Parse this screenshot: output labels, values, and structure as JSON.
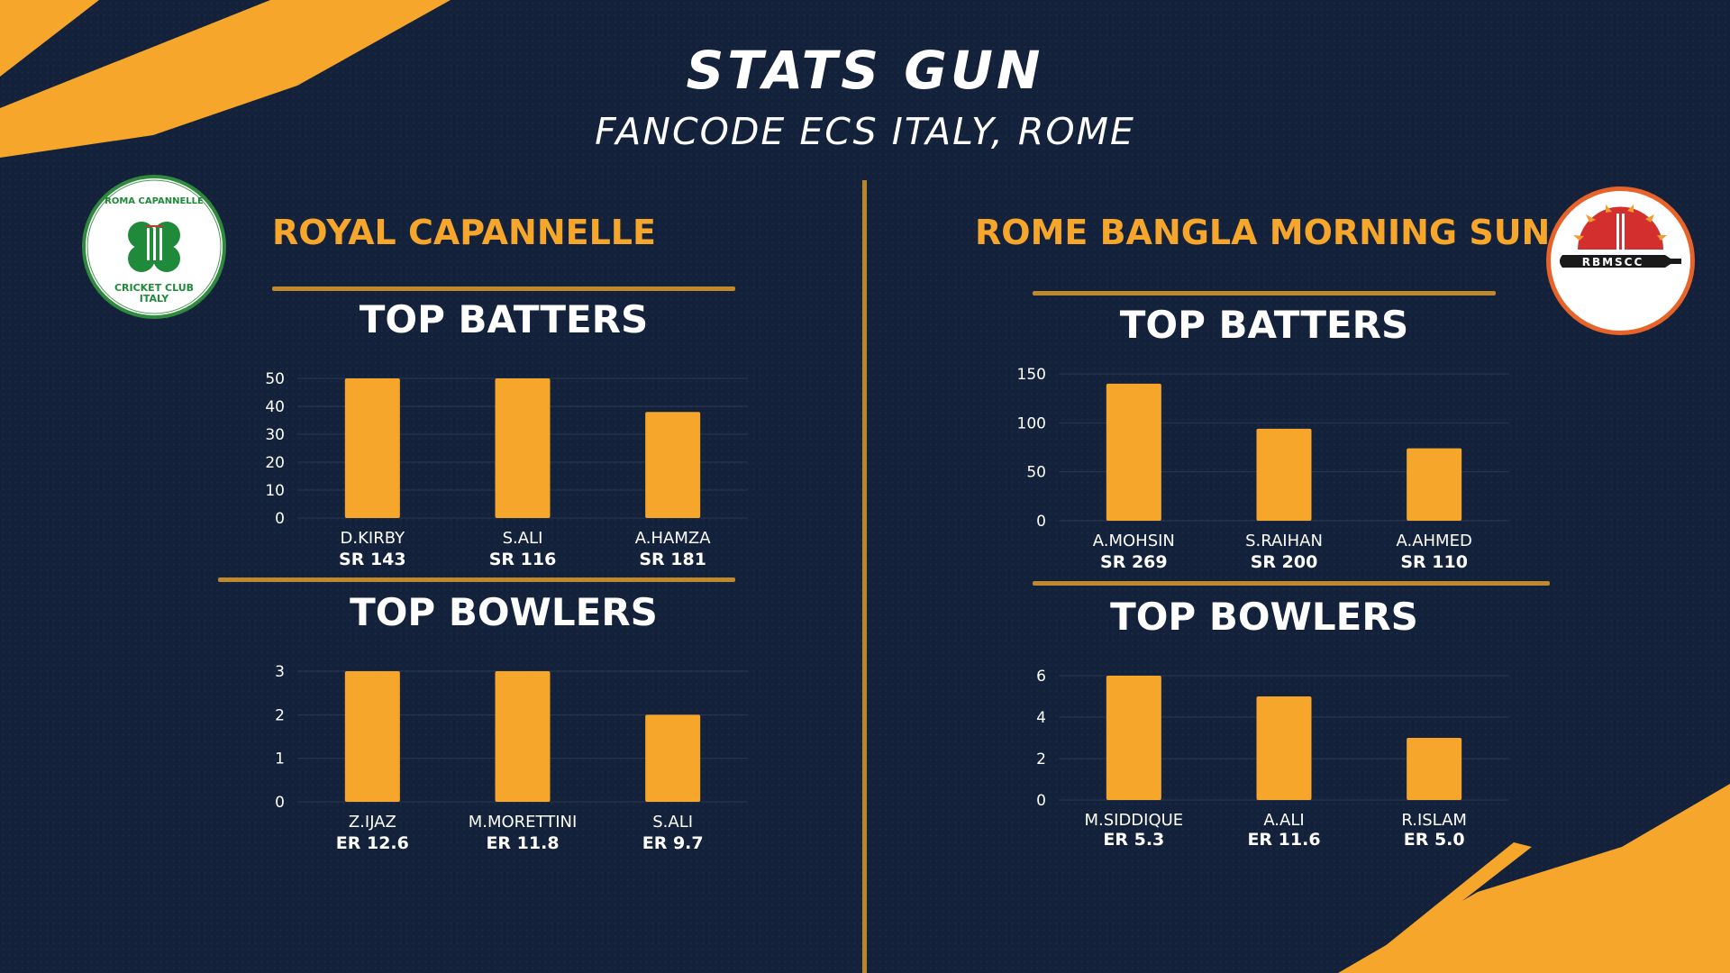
{
  "header": {
    "title": "STATS GUN",
    "subtitle": "FANCODE ECS ITALY, ROME"
  },
  "colors": {
    "background": "#13213b",
    "accent": "#f6a62a",
    "bar": "#f6a62a",
    "divider": "#c08a2c"
  },
  "teams": [
    {
      "name": "ROYAL CAPANNELLE",
      "logo": {
        "icon": "shamrock-cricket-logo-icon",
        "top_text": "ROMA CAPANNELLE",
        "bottom_text_1": "CRICKET CLUB",
        "bottom_text_2": "ITALY"
      },
      "batters_title": "TOP BATTERS",
      "bowlers_title": "TOP BOWLERS"
    },
    {
      "name": "ROME BANGLA MORNING SUN",
      "logo": {
        "icon": "sunrise-bat-logo-icon",
        "text": "RBMSCC"
      },
      "batters_title": "TOP BATTERS",
      "bowlers_title": "TOP BOWLERS"
    }
  ],
  "chart_data": [
    {
      "type": "bar",
      "title": "TOP BATTERS",
      "categories": [
        "D.KIRBY",
        "S.ALI",
        "A.HAMZA"
      ],
      "sublabels": [
        "SR 143",
        "SR 116",
        "SR 181"
      ],
      "values": [
        50,
        50,
        38
      ],
      "yticks": [
        0,
        10,
        20,
        30,
        40,
        50
      ],
      "ylim": [
        0,
        50
      ],
      "grid": true
    },
    {
      "type": "bar",
      "title": "TOP BOWLERS",
      "categories": [
        "Z.IJAZ",
        "M.MORETTINI",
        "S.ALI"
      ],
      "sublabels": [
        "ER 12.6",
        "ER 11.8",
        "ER 9.7"
      ],
      "values": [
        3,
        3,
        2
      ],
      "yticks": [
        0,
        1,
        2,
        3
      ],
      "ylim": [
        0,
        3
      ],
      "grid": true
    },
    {
      "type": "bar",
      "title": "TOP BATTERS",
      "categories": [
        "A.MOHSIN",
        "S.RAIHAN",
        "A.AHMED"
      ],
      "sublabels": [
        "SR 269",
        "SR 200",
        "SR 110"
      ],
      "values": [
        140,
        94,
        74
      ],
      "yticks": [
        0,
        50,
        100,
        150
      ],
      "ylim": [
        0,
        150
      ],
      "grid": true
    },
    {
      "type": "bar",
      "title": "TOP BOWLERS",
      "categories": [
        "M.SIDDIQUE",
        "A.ALI",
        "R.ISLAM"
      ],
      "sublabels": [
        "ER 5.3",
        "ER 11.6",
        "ER 5.0"
      ],
      "values": [
        6,
        5,
        3
      ],
      "yticks": [
        0,
        2,
        4,
        6
      ],
      "ylim": [
        0,
        6
      ],
      "grid": true
    }
  ]
}
